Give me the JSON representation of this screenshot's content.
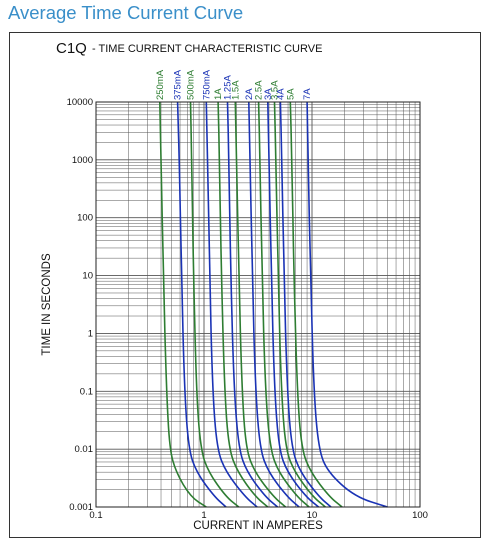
{
  "page": {
    "heading": "Average Time Current Curve"
  },
  "colors": {
    "heading": "#3a8fc9",
    "series_green": "#2e7d32",
    "series_blue": "#1a33b5",
    "grid": "#555555"
  },
  "chart_data": {
    "type": "line",
    "title_code": "C1Q",
    "title": "- TIME CURRENT CHARACTERISTIC CURVE",
    "xlabel": "CURRENT IN AMPERES",
    "ylabel": "TIME IN SECONDS",
    "xscale": "log",
    "yscale": "log",
    "xlim": [
      0.1,
      100
    ],
    "ylim": [
      0.001,
      10000
    ],
    "xticks": [
      "0.1",
      "1",
      "10",
      "100"
    ],
    "yticks": [
      "0.001",
      "0.01",
      "0.1",
      "1",
      "10",
      "100",
      "1000",
      "10000"
    ],
    "grid": true,
    "series": [
      {
        "name": "250mA",
        "color": "green",
        "x": [
          0.39,
          0.4,
          0.42,
          0.45,
          0.48,
          0.55,
          0.75,
          1.05
        ],
        "y": [
          10000,
          1000,
          10,
          0.1,
          0.01,
          0.004,
          0.0015,
          0.001
        ]
      },
      {
        "name": "375mA",
        "color": "blue",
        "x": [
          0.57,
          0.59,
          0.62,
          0.66,
          0.72,
          0.85,
          1.25,
          1.6
        ],
        "y": [
          10000,
          1000,
          10,
          0.1,
          0.01,
          0.004,
          0.0015,
          0.001
        ]
      },
      {
        "name": "500mA",
        "color": "green",
        "x": [
          0.75,
          0.77,
          0.8,
          0.85,
          0.93,
          1.1,
          1.6,
          2.1
        ],
        "y": [
          10000,
          1000,
          10,
          0.1,
          0.01,
          0.004,
          0.0015,
          0.001
        ]
      },
      {
        "name": "750mA",
        "color": "blue",
        "x": [
          1.05,
          1.08,
          1.13,
          1.2,
          1.32,
          1.6,
          2.4,
          3.1
        ],
        "y": [
          10000,
          1000,
          10,
          0.1,
          0.01,
          0.004,
          0.0015,
          0.001
        ]
      },
      {
        "name": "1A",
        "color": "green",
        "x": [
          1.35,
          1.39,
          1.45,
          1.55,
          1.7,
          2.05,
          3.0,
          3.9
        ],
        "y": [
          10000,
          1000,
          10,
          0.1,
          0.01,
          0.004,
          0.0015,
          0.001
        ]
      },
      {
        "name": "1.25A",
        "color": "blue",
        "x": [
          1.65,
          1.7,
          1.77,
          1.9,
          2.1,
          2.5,
          3.7,
          4.8
        ],
        "y": [
          10000,
          1000,
          10,
          0.1,
          0.01,
          0.004,
          0.0015,
          0.001
        ]
      },
      {
        "name": "1.5A",
        "color": "green",
        "x": [
          1.95,
          2.0,
          2.1,
          2.25,
          2.45,
          2.95,
          4.4,
          5.7
        ],
        "y": [
          10000,
          1000,
          10,
          0.1,
          0.01,
          0.004,
          0.0015,
          0.001
        ]
      },
      {
        "name": "2A",
        "color": "blue",
        "x": [
          2.6,
          2.67,
          2.8,
          3.0,
          3.3,
          3.95,
          5.9,
          7.6
        ],
        "y": [
          10000,
          1000,
          10,
          0.1,
          0.01,
          0.004,
          0.0015,
          0.001
        ]
      },
      {
        "name": "2.5A",
        "color": "green",
        "x": [
          3.2,
          3.3,
          3.45,
          3.7,
          4.1,
          4.9,
          7.3,
          9.4
        ],
        "y": [
          10000,
          1000,
          10,
          0.1,
          0.01,
          0.004,
          0.0015,
          0.001
        ]
      },
      {
        "name": "3A",
        "color": "blue",
        "x": [
          3.9,
          4.0,
          4.2,
          4.5,
          4.95,
          5.9,
          8.8,
          11.5
        ],
        "y": [
          10000,
          1000,
          10,
          0.1,
          0.01,
          0.004,
          0.0015,
          0.001
        ]
      },
      {
        "name": "3.5A",
        "color": "green",
        "x": [
          4.5,
          4.63,
          4.85,
          5.2,
          5.7,
          6.9,
          10.2,
          13.3
        ],
        "y": [
          10000,
          1000,
          10,
          0.1,
          0.01,
          0.004,
          0.0015,
          0.001
        ]
      },
      {
        "name": "4A",
        "color": "blue",
        "x": [
          5.1,
          5.25,
          5.5,
          5.9,
          6.5,
          7.8,
          11.6,
          15.0
        ],
        "y": [
          10000,
          1000,
          10,
          0.1,
          0.01,
          0.004,
          0.0015,
          0.001
        ]
      },
      {
        "name": "5A",
        "color": "green",
        "x": [
          6.3,
          6.5,
          6.8,
          7.3,
          8.0,
          9.7,
          14.5,
          19.0
        ],
        "y": [
          10000,
          1000,
          10,
          0.1,
          0.01,
          0.004,
          0.0015,
          0.001
        ]
      },
      {
        "name": "7A",
        "color": "blue",
        "x": [
          9.0,
          9.2,
          9.7,
          10.4,
          11.5,
          14.0,
          25.0,
          50.0
        ],
        "y": [
          10000,
          1000,
          10,
          0.1,
          0.01,
          0.004,
          0.0015,
          0.001
        ]
      }
    ]
  }
}
